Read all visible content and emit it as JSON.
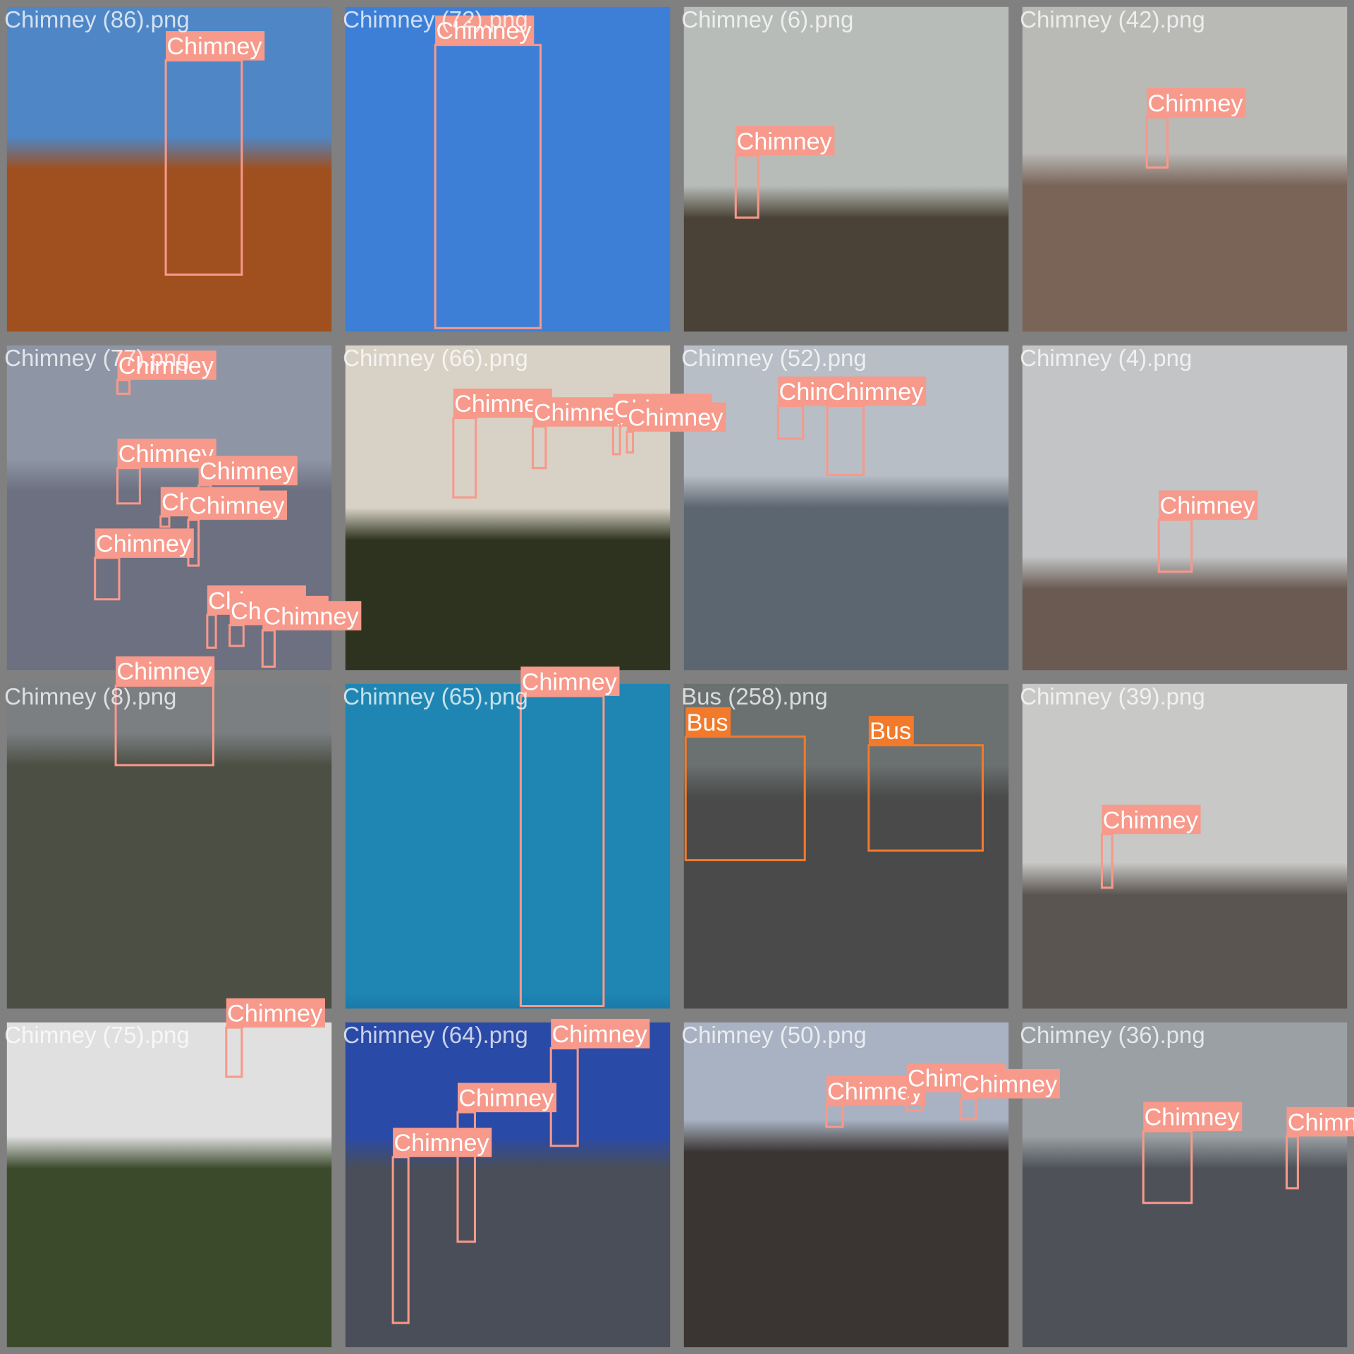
{
  "tiles": [
    {
      "name": "Chimney (86).png",
      "boxes": [
        "Chimney"
      ]
    },
    {
      "name": "Chimney (72).png",
      "boxes": [
        "Chimney"
      ]
    },
    {
      "name": "Chimney (6).png",
      "boxes": [
        "Chimney"
      ]
    },
    {
      "name": "Chimney (42).png",
      "boxes": [
        "Chimney"
      ]
    },
    {
      "name": "Chimney (77).png",
      "boxes": [
        "Chimney",
        "Chimney",
        "Chimney",
        "Chimney",
        "Chimney",
        "Chimney",
        "Chimney",
        "Chimney",
        "Chimney"
      ]
    },
    {
      "name": "Chimney (66).png",
      "boxes": [
        "Chimney",
        "Chimney",
        "Chimney",
        "Chimney"
      ]
    },
    {
      "name": "Chimney (52).png",
      "boxes": [
        "Chimney",
        "Chimney"
      ]
    },
    {
      "name": "Chimney (4).png",
      "boxes": [
        "Chimney"
      ]
    },
    {
      "name": "Chimney (8).png",
      "boxes": [
        "Chimney"
      ]
    },
    {
      "name": "Chimney (65).png",
      "boxes": [
        "Chimney"
      ]
    },
    {
      "name": "Bus (258).png",
      "boxes": [
        "Bus",
        "Bus"
      ]
    },
    {
      "name": "Chimney (39).png",
      "boxes": [
        "Chimney"
      ]
    },
    {
      "name": "Chimney (75).png",
      "boxes": [
        "Chimney"
      ]
    },
    {
      "name": "Chimney (64).png",
      "boxes": [
        "Chimney",
        "Chimney",
        "Chimney"
      ]
    },
    {
      "name": "Chimney (50).png",
      "boxes": [
        "Chimney",
        "Chimney",
        "Chimney"
      ]
    },
    {
      "name": "Chimney (36).png",
      "boxes": [
        "Chimney",
        "Chimney"
      ]
    }
  ]
}
